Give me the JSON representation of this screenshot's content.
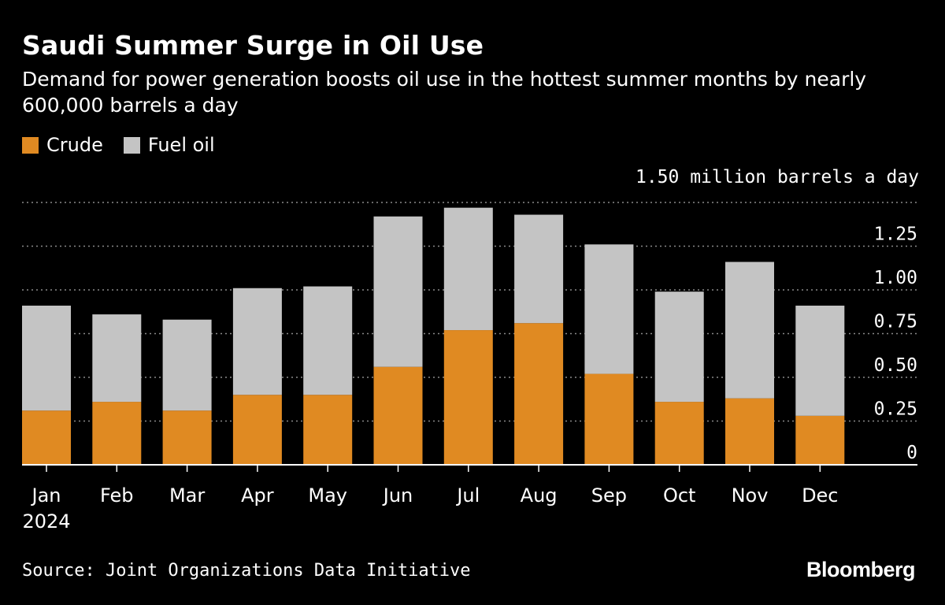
{
  "chart_data": {
    "type": "bar",
    "stacked": true,
    "title": "Saudi Summer Surge in Oil Use",
    "subtitle": "Demand for power generation boosts oil use in the hottest summer months by nearly 600,000 barrels a day",
    "unit_label": "1.50 million barrels a day",
    "categories": [
      "Jan",
      "Feb",
      "Mar",
      "Apr",
      "May",
      "Jun",
      "Jul",
      "Aug",
      "Sep",
      "Oct",
      "Nov",
      "Dec"
    ],
    "year_label": "2024",
    "ylim": [
      0,
      1.5
    ],
    "yticks": [
      "0",
      "0.25",
      "0.50",
      "0.75",
      "1.00",
      "1.25"
    ],
    "ytick_values": [
      0,
      0.25,
      0.5,
      0.75,
      1.0,
      1.25
    ],
    "series": [
      {
        "name": "Crude",
        "color": "#e08a22",
        "values": [
          0.31,
          0.36,
          0.31,
          0.4,
          0.4,
          0.56,
          0.77,
          0.81,
          0.52,
          0.36,
          0.38,
          0.28
        ]
      },
      {
        "name": "Fuel oil",
        "color": "#c4c4c4",
        "values": [
          0.6,
          0.5,
          0.52,
          0.61,
          0.62,
          0.86,
          0.7,
          0.62,
          0.74,
          0.63,
          0.78,
          0.63
        ]
      }
    ],
    "legend_position": "top-left",
    "grid": true
  },
  "source": "Source: Joint Organizations Data Initiative",
  "brand": "Bloomberg"
}
